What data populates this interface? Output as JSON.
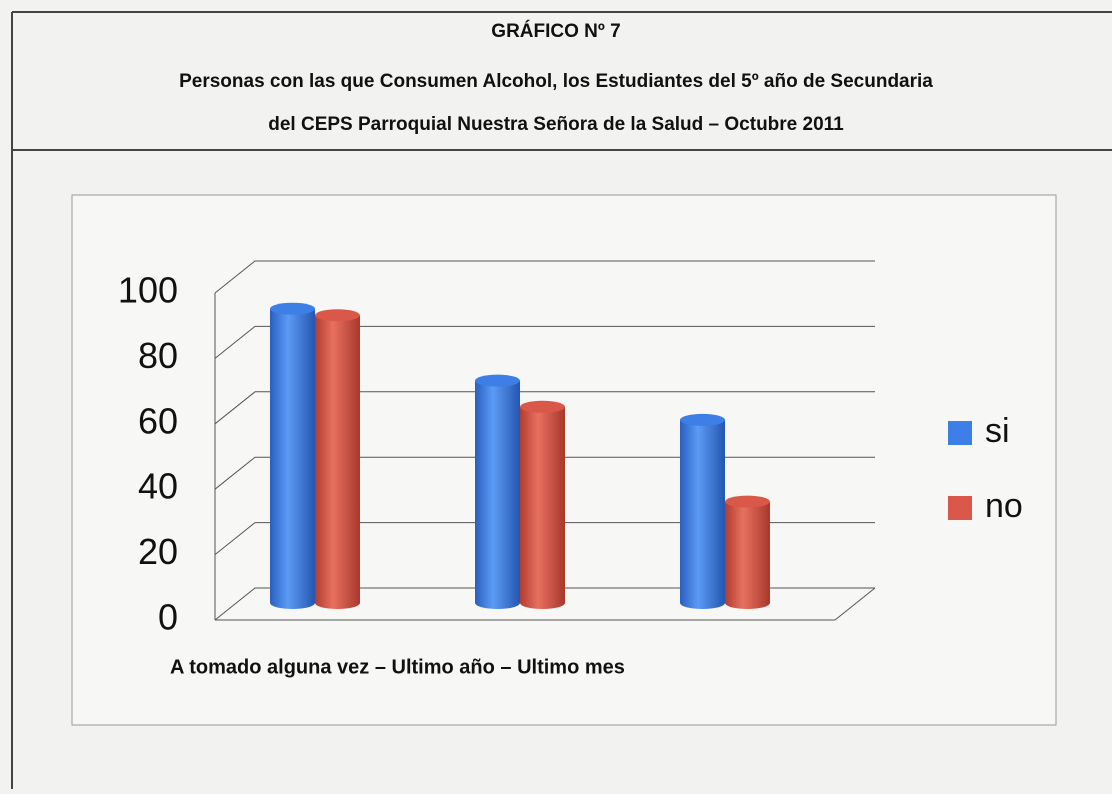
{
  "chart_data": {
    "type": "bar",
    "title": "GRÁFICO Nº 7",
    "subtitle": [
      "Personas con las que Consumen Alcohol, los  Estudiantes del 5º año de Secundaria",
      "del CEPS Parroquial Nuestra Señora de la Salud – Octubre 2011"
    ],
    "x_label": "A tomado alguna vez – Ultimo año – Ultimo mes",
    "categories": [
      null,
      null,
      null
    ],
    "series": [
      {
        "name": "si",
        "color": "#3d7fe6",
        "values": [
          90,
          68,
          56
        ]
      },
      {
        "name": "no",
        "color": "#d9584a",
        "values": [
          88,
          60,
          31
        ]
      }
    ],
    "ylim": [
      0,
      100
    ],
    "yticks": [
      0,
      20,
      40,
      60,
      80,
      100
    ],
    "grid": true
  }
}
